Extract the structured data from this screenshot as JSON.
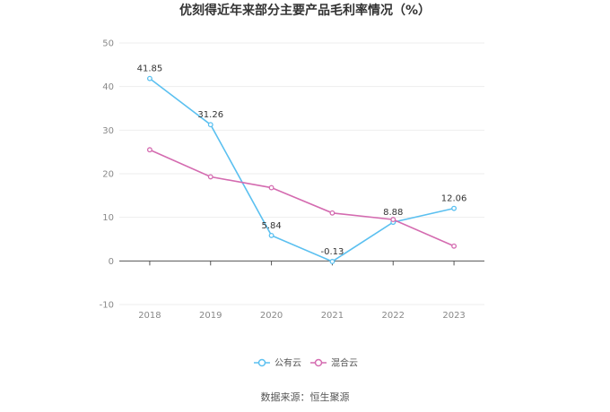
{
  "chart_data": {
    "type": "line",
    "title": "优刻得近年来部分主要产品毛利率情况（%）",
    "categories": [
      "2018",
      "2019",
      "2020",
      "2021",
      "2022",
      "2023"
    ],
    "ylim": [
      -10,
      50
    ],
    "yticks": [
      "50",
      "40",
      "30",
      "20",
      "10",
      "0",
      "-10"
    ],
    "ytick_values": [
      50,
      40,
      30,
      20,
      10,
      0,
      -10
    ],
    "grid": true,
    "legend_position": "bottom-center",
    "series": [
      {
        "name": "公有云",
        "color": "#5bc0f0",
        "values": [
          41.85,
          31.26,
          5.84,
          -0.13,
          8.88,
          12.06
        ],
        "labels": [
          "41.85",
          "31.26",
          "5.84",
          "-0.13",
          "8.88",
          "12.06"
        ]
      },
      {
        "name": "混合云",
        "color": "#d46bb0",
        "values": [
          25.5,
          19.3,
          16.8,
          11.0,
          9.5,
          3.4
        ]
      }
    ],
    "source": "数据来源：恒生聚源"
  }
}
